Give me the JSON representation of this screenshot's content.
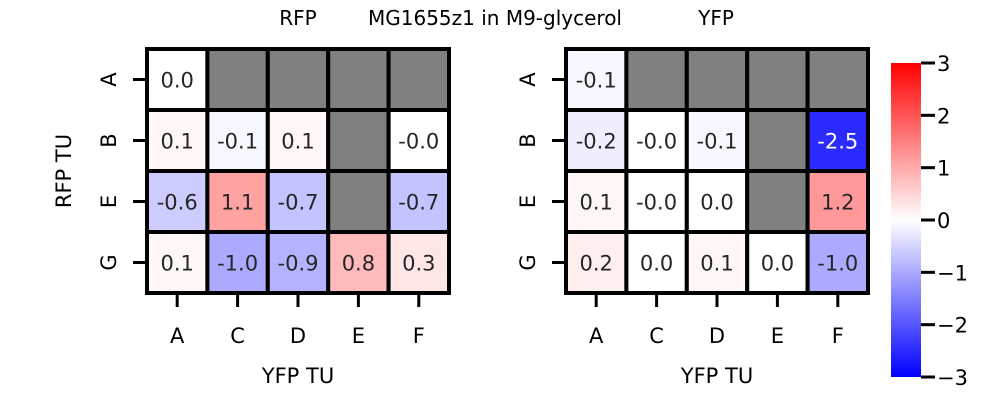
{
  "titles": {
    "left_panel": "RFP",
    "center": "MG1655z1 in M9-glycerol",
    "right_panel": "YFP"
  },
  "chart_data": [
    {
      "type": "heatmap",
      "title": "RFP",
      "xlabel": "YFP TU",
      "ylabel": "RFP TU",
      "x_categories": [
        "A",
        "C",
        "D",
        "E",
        "F"
      ],
      "y_categories": [
        "A",
        "B",
        "E",
        "G"
      ],
      "values": [
        [
          0.0,
          null,
          null,
          null,
          null
        ],
        [
          0.1,
          -0.1,
          0.1,
          null,
          -0.0
        ],
        [
          -0.6,
          1.1,
          -0.7,
          null,
          -0.7
        ],
        [
          0.1,
          -1.0,
          -0.9,
          0.8,
          0.3
        ]
      ],
      "cell_labels": [
        [
          "0.0",
          "",
          "",
          "",
          ""
        ],
        [
          "0.1",
          "-0.1",
          "0.1",
          "",
          "-0.0"
        ],
        [
          "-0.6",
          "1.1",
          "-0.7",
          "",
          "-0.7"
        ],
        [
          "0.1",
          "-1.0",
          "-0.9",
          "0.8",
          "0.3"
        ]
      ],
      "missing_color": "#808080"
    },
    {
      "type": "heatmap",
      "title": "YFP",
      "xlabel": "YFP TU",
      "ylabel": "",
      "x_categories": [
        "A",
        "C",
        "D",
        "E",
        "F"
      ],
      "y_categories": [
        "A",
        "B",
        "E",
        "G"
      ],
      "values": [
        [
          -0.1,
          null,
          null,
          null,
          null
        ],
        [
          -0.2,
          -0.0,
          -0.1,
          null,
          -2.5
        ],
        [
          0.1,
          -0.0,
          0.0,
          null,
          1.2
        ],
        [
          0.2,
          0.0,
          0.1,
          0.0,
          -1.0
        ]
      ],
      "cell_labels": [
        [
          "-0.1",
          "",
          "",
          "",
          ""
        ],
        [
          "-0.2",
          "-0.0",
          "-0.1",
          "",
          "-2.5"
        ],
        [
          "0.1",
          "-0.0",
          "0.0",
          "",
          "1.2"
        ],
        [
          "0.2",
          "0.0",
          "0.1",
          "0.0",
          "-1.0"
        ]
      ],
      "missing_color": "#808080"
    }
  ],
  "colorbar": {
    "colormap": "bwr",
    "range": [
      -3,
      3
    ],
    "ticks": [
      3,
      2,
      1,
      0,
      -1,
      -2,
      -3
    ],
    "tick_labels": [
      "3",
      "2",
      "1",
      "0",
      "−1",
      "−2",
      "−3"
    ],
    "colors": {
      "low": "#0000ff",
      "mid": "#ffffff",
      "high": "#ff0000"
    }
  }
}
